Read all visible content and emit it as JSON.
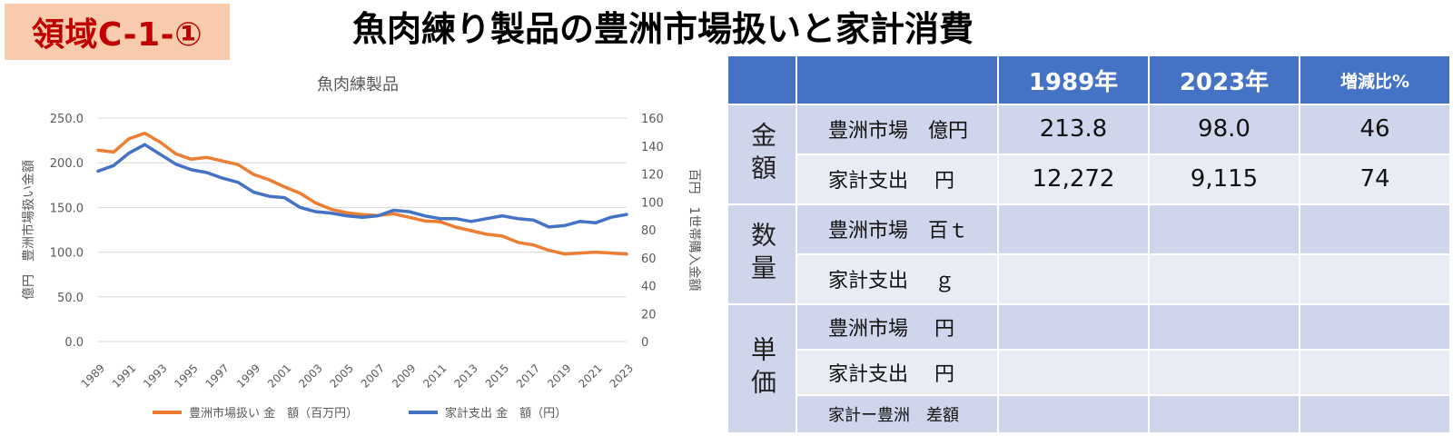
{
  "tag_label": "領域C-1-①",
  "main_title": "魚肉練り製品の豊洲市場扱いと家計消費",
  "chart_data": {
    "type": "line",
    "title": "魚肉練製品",
    "ylabel_left": "億円　豊洲市場扱い金額",
    "ylabel_right": "百円　1世帯購入金額",
    "ylim_left": [
      0,
      250
    ],
    "ylim_right": [
      0,
      160
    ],
    "yticks_left": [
      "0.0",
      "50.0",
      "100.0",
      "150.0",
      "200.0",
      "250.0"
    ],
    "yticks_right": [
      "0",
      "20",
      "40",
      "60",
      "80",
      "100",
      "120",
      "140",
      "160"
    ],
    "x": [
      1989,
      1990,
      1991,
      1992,
      1993,
      1994,
      1995,
      1996,
      1997,
      1998,
      1999,
      2000,
      2001,
      2002,
      2003,
      2004,
      2005,
      2006,
      2007,
      2008,
      2009,
      2010,
      2011,
      2012,
      2013,
      2014,
      2015,
      2016,
      2017,
      2018,
      2019,
      2020,
      2021,
      2022,
      2023
    ],
    "xtick_labels": [
      "1989",
      "1991",
      "1993",
      "1995",
      "1997",
      "1999",
      "2001",
      "2003",
      "2005",
      "2007",
      "2009",
      "2011",
      "2013",
      "2015",
      "2017",
      "2019",
      "2021",
      "2023"
    ],
    "grid": true,
    "legend_position": "bottom",
    "series": [
      {
        "name": "豊洲市場扱い 金　額（百万円）",
        "axis": "left",
        "color": "#ed7d31",
        "values": [
          214,
          212,
          227,
          233,
          223,
          210,
          204,
          206,
          202,
          198,
          187,
          181,
          173,
          166,
          155,
          148,
          144,
          142,
          141,
          143,
          139,
          135,
          134,
          128,
          124,
          120,
          118,
          111,
          108,
          102,
          98,
          99,
          100,
          99,
          98
        ]
      },
      {
        "name": "家計支出 金　額（円）",
        "axis": "right",
        "color": "#4472c4",
        "values": [
          122,
          126,
          135,
          141,
          134,
          127,
          123,
          121,
          117,
          114,
          107,
          104,
          103,
          96,
          93,
          92,
          90,
          89,
          90,
          94,
          93,
          90,
          88,
          88,
          86,
          88,
          90,
          88,
          87,
          82,
          83,
          86,
          85,
          89,
          91
        ]
      }
    ]
  },
  "table": {
    "headers": [
      "",
      "",
      "1989年",
      "2023年",
      "増減比%"
    ],
    "groups": [
      {
        "label": "金額",
        "rows": [
          {
            "label": "豊洲市場　億円",
            "v1989": "213.8",
            "v2023": "98.0",
            "ratio": "46"
          },
          {
            "label": "家計支出　 円",
            "v1989": "12,272",
            "v2023": "9,115",
            "ratio": "74"
          }
        ]
      },
      {
        "label": "数量",
        "rows": [
          {
            "label": "豊洲市場　百ｔ",
            "v1989": "",
            "v2023": "",
            "ratio": ""
          },
          {
            "label": "家計支出　 ｇ",
            "v1989": "",
            "v2023": "",
            "ratio": ""
          }
        ]
      },
      {
        "label": "単価",
        "rows": [
          {
            "label": "豊洲市場　 円",
            "v1989": "",
            "v2023": "",
            "ratio": ""
          },
          {
            "label": "家計支出　 円",
            "v1989": "",
            "v2023": "",
            "ratio": ""
          },
          {
            "label": "家計ー豊洲　差額",
            "v1989": "",
            "v2023": "",
            "ratio": ""
          }
        ]
      }
    ]
  }
}
